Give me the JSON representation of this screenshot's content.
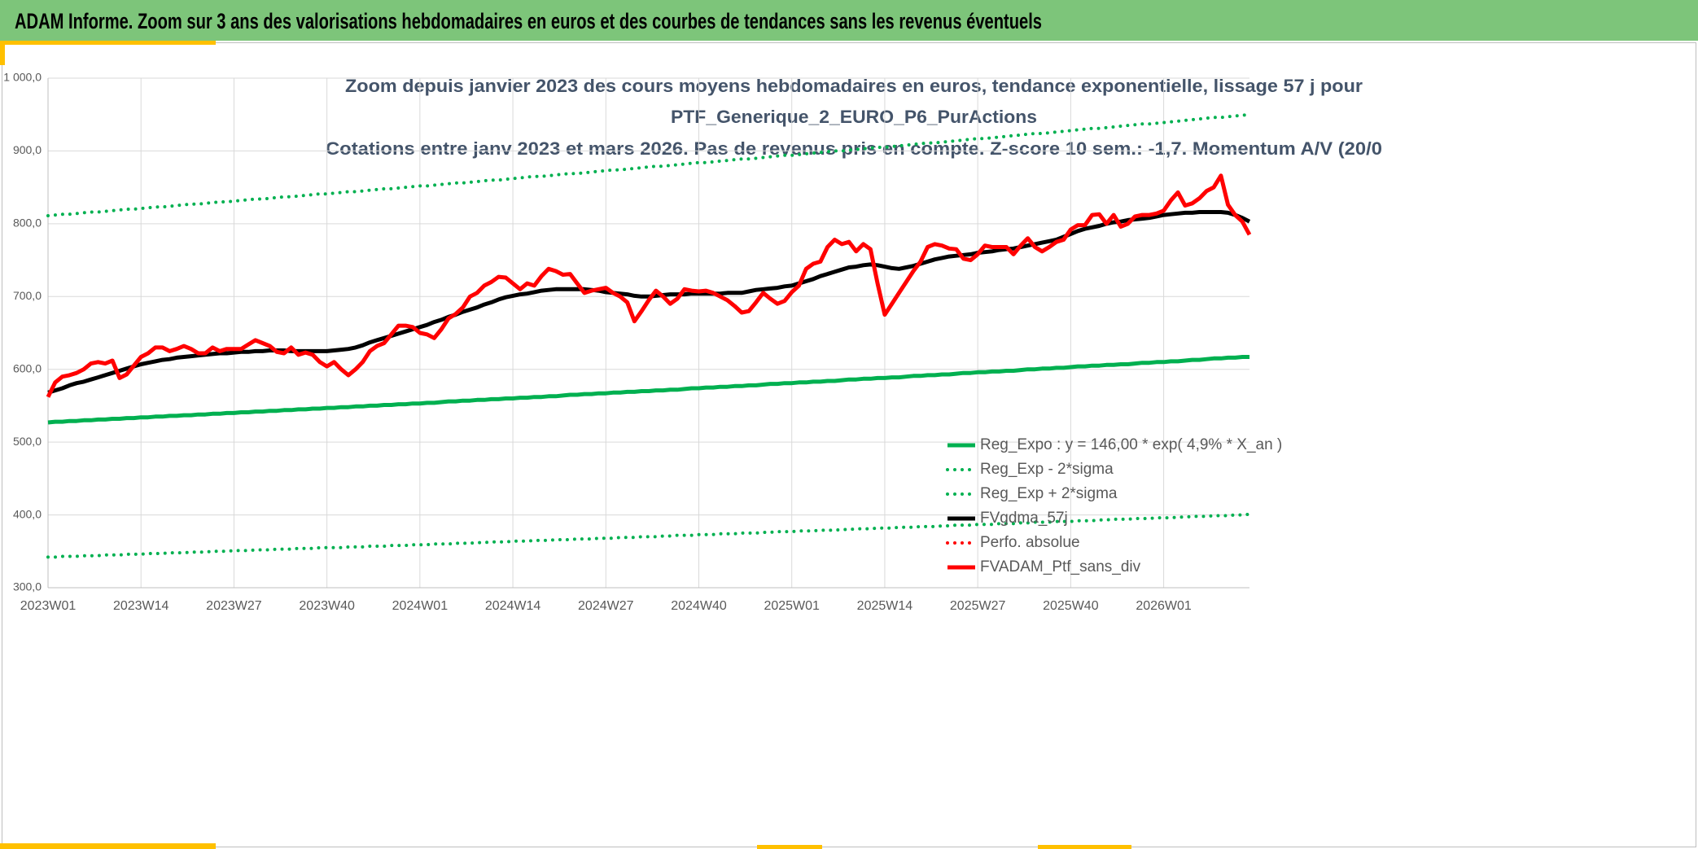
{
  "header": {
    "title": "ADAM Informe. Zoom sur 3 ans des valorisations hebdomadaires en euros et des courbes de tendances sans les revenus éventuels"
  },
  "chart_data": {
    "type": "line",
    "title": [
      "Zoom depuis janvier 2023 des cours moyens hebdomadaires en euros, tendance exponentielle, lissage 57 j pour",
      "PTF_Generique_2_EURO_P6_PurActions",
      "Cotations entre janv 2023 et mars 2026. Pas de revenus pris en compte. Z-score 10 sem.: -1,7. Momentum A/V (20/0"
    ],
    "categories": [
      "2023W01",
      null,
      null,
      null,
      null,
      null,
      null,
      null,
      null,
      null,
      null,
      null,
      null,
      "2023W14",
      null,
      null,
      null,
      null,
      null,
      null,
      null,
      null,
      null,
      null,
      null,
      null,
      "2023W27",
      null,
      null,
      null,
      null,
      null,
      null,
      null,
      null,
      null,
      null,
      null,
      null,
      "2023W40",
      null,
      null,
      null,
      null,
      null,
      null,
      null,
      null,
      null,
      null,
      null,
      null,
      "2024W01",
      null,
      null,
      null,
      null,
      null,
      null,
      null,
      null,
      null,
      null,
      null,
      null,
      "2024W14",
      null,
      null,
      null,
      null,
      null,
      null,
      null,
      null,
      null,
      null,
      null,
      null,
      "2024W27",
      null,
      null,
      null,
      null,
      null,
      null,
      null,
      null,
      null,
      null,
      null,
      null,
      "2024W40",
      null,
      null,
      null,
      null,
      null,
      null,
      null,
      null,
      null,
      null,
      null,
      null,
      "2025W01",
      null,
      null,
      null,
      null,
      null,
      null,
      null,
      null,
      null,
      null,
      null,
      null,
      "2025W14",
      null,
      null,
      null,
      null,
      null,
      null,
      null,
      null,
      null,
      null,
      null,
      null,
      "2025W27",
      null,
      null,
      null,
      null,
      null,
      null,
      null,
      null,
      null,
      null,
      null,
      null,
      "2025W40",
      null,
      null,
      null,
      null,
      null,
      null,
      null,
      null,
      null,
      null,
      null,
      null,
      "2026W01",
      null,
      null,
      null,
      null,
      null,
      null,
      null,
      null,
      null,
      null,
      null,
      null
    ],
    "ylim": [
      300,
      1000
    ],
    "yticks": [
      {
        "value": 300,
        "label": "300,0"
      },
      {
        "value": 400,
        "label": "400,0"
      },
      {
        "value": 500,
        "label": "500,0"
      },
      {
        "value": 600,
        "label": "600,0"
      },
      {
        "value": 700,
        "label": "700,0"
      },
      {
        "value": 800,
        "label": "800,0"
      },
      {
        "value": 900,
        "label": "900,0"
      },
      {
        "value": 1000,
        "label": "1 000,0"
      }
    ],
    "grid": true,
    "legend": "lower right",
    "series": [
      {
        "name": "Reg_Expo : y = 146,00 * exp( 4,9% *  X_an )",
        "color": "#00b050",
        "style": "solid",
        "values": [
          527,
          528,
          528,
          529,
          529,
          530,
          530,
          531,
          531,
          532,
          532,
          533,
          533,
          534,
          534,
          535,
          535,
          536,
          536,
          537,
          537,
          538,
          538,
          539,
          539,
          540,
          540,
          541,
          541,
          542,
          542,
          543,
          543,
          544,
          544,
          545,
          545,
          546,
          546,
          547,
          547,
          548,
          548,
          549,
          549,
          550,
          550,
          551,
          551,
          552,
          552,
          553,
          553,
          554,
          554,
          555,
          556,
          556,
          557,
          557,
          558,
          558,
          559,
          559,
          560,
          560,
          561,
          561,
          562,
          562,
          563,
          563,
          564,
          565,
          565,
          566,
          566,
          567,
          567,
          568,
          568,
          569,
          569,
          570,
          570,
          571,
          571,
          572,
          572,
          573,
          574,
          574,
          575,
          575,
          576,
          576,
          577,
          577,
          578,
          578,
          579,
          580,
          580,
          581,
          581,
          582,
          582,
          583,
          583,
          584,
          584,
          585,
          586,
          586,
          587,
          587,
          588,
          588,
          589,
          589,
          590,
          591,
          591,
          592,
          592,
          593,
          593,
          594,
          595,
          595,
          596,
          596,
          597,
          597,
          598,
          598,
          599,
          600,
          600,
          601,
          601,
          602,
          602,
          603,
          604,
          604,
          605,
          605,
          606,
          606,
          607,
          607,
          608,
          609,
          609,
          610,
          610,
          611,
          611,
          612,
          613,
          613,
          614,
          615,
          615,
          616,
          616,
          617,
          617
        ]
      },
      {
        "name": "Reg_Exp - 2*sigma",
        "color": "#00b050",
        "style": "dotted",
        "values": [
          342,
          342,
          343,
          343,
          343,
          344,
          344,
          344,
          345,
          345,
          345,
          346,
          346,
          346,
          347,
          347,
          347,
          348,
          348,
          348,
          349,
          349,
          349,
          350,
          350,
          350,
          351,
          351,
          351,
          352,
          352,
          352,
          353,
          353,
          353,
          354,
          354,
          354,
          355,
          355,
          355,
          355,
          356,
          356,
          356,
          357,
          357,
          357,
          358,
          358,
          358,
          359,
          359,
          359,
          360,
          360,
          360,
          361,
          361,
          361,
          362,
          362,
          363,
          363,
          363,
          364,
          364,
          364,
          365,
          365,
          365,
          366,
          366,
          366,
          367,
          367,
          367,
          368,
          368,
          368,
          369,
          369,
          369,
          370,
          370,
          370,
          371,
          371,
          372,
          372,
          372,
          373,
          373,
          373,
          374,
          374,
          374,
          375,
          375,
          375,
          376,
          376,
          377,
          377,
          377,
          378,
          378,
          378,
          379,
          379,
          379,
          380,
          380,
          381,
          381,
          381,
          382,
          382,
          382,
          383,
          383,
          383,
          384,
          384,
          384,
          385,
          385,
          386,
          386,
          386,
          387,
          387,
          387,
          388,
          388,
          388,
          389,
          389,
          390,
          390,
          390,
          391,
          391,
          391,
          392,
          392,
          392,
          393,
          393,
          394,
          394,
          394,
          395,
          395,
          395,
          396,
          396,
          396,
          397,
          397,
          398,
          398,
          398,
          399,
          399,
          399,
          400,
          400,
          401
        ]
      },
      {
        "name": "Reg_Exp + 2*sigma",
        "color": "#00b050",
        "style": "dotted",
        "values": [
          811,
          812,
          813,
          813,
          814,
          815,
          816,
          816,
          817,
          818,
          819,
          820,
          820,
          821,
          822,
          823,
          823,
          824,
          825,
          826,
          827,
          827,
          828,
          829,
          830,
          830,
          831,
          832,
          833,
          834,
          834,
          835,
          836,
          837,
          837,
          838,
          839,
          840,
          841,
          841,
          842,
          843,
          844,
          844,
          845,
          846,
          847,
          848,
          848,
          849,
          850,
          851,
          852,
          852,
          853,
          854,
          855,
          856,
          856,
          857,
          858,
          859,
          860,
          860,
          861,
          862,
          863,
          864,
          865,
          865,
          866,
          867,
          868,
          869,
          869,
          870,
          871,
          872,
          873,
          874,
          874,
          875,
          876,
          877,
          878,
          879,
          879,
          880,
          881,
          882,
          883,
          884,
          884,
          885,
          886,
          887,
          888,
          889,
          889,
          890,
          891,
          892,
          893,
          894,
          894,
          895,
          896,
          897,
          898,
          899,
          900,
          900,
          901,
          902,
          903,
          904,
          905,
          905,
          906,
          907,
          908,
          909,
          910,
          911,
          911,
          912,
          913,
          914,
          915,
          916,
          917,
          917,
          918,
          919,
          920,
          921,
          922,
          923,
          924,
          924,
          925,
          926,
          927,
          928,
          929,
          930,
          931,
          931,
          932,
          933,
          934,
          935,
          936,
          937,
          937,
          938,
          939,
          940,
          941,
          942,
          943,
          944,
          945,
          946,
          946,
          947,
          948,
          949,
          950
        ]
      },
      {
        "name": "FVgdma_57j",
        "color": "#000000",
        "style": "solid",
        "values": [
          568,
          571,
          574,
          578,
          581,
          583,
          586,
          589,
          592,
          595,
          598,
          601,
          604,
          607,
          609,
          611,
          613,
          614,
          616,
          617,
          618,
          619,
          620,
          621,
          622,
          622,
          623,
          624,
          624,
          625,
          625,
          626,
          626,
          626,
          625,
          625,
          625,
          625,
          625,
          625,
          626,
          627,
          628,
          630,
          633,
          637,
          640,
          643,
          646,
          649,
          652,
          655,
          658,
          661,
          665,
          668,
          672,
          675,
          679,
          682,
          685,
          689,
          692,
          696,
          699,
          701,
          703,
          704,
          706,
          708,
          709,
          710,
          710,
          710,
          710,
          710,
          709,
          708,
          706,
          705,
          704,
          703,
          701,
          700,
          700,
          701,
          702,
          703,
          703,
          703,
          704,
          704,
          704,
          704,
          704,
          705,
          705,
          705,
          707,
          709,
          710,
          711,
          712,
          714,
          715,
          718,
          721,
          724,
          728,
          731,
          734,
          737,
          740,
          741,
          743,
          744,
          743,
          741,
          739,
          738,
          740,
          742,
          745,
          748,
          751,
          753,
          755,
          756,
          757,
          758,
          760,
          761,
          762,
          764,
          765,
          766,
          768,
          770,
          772,
          774,
          776,
          778,
          782,
          786,
          790,
          793,
          795,
          797,
          800,
          802,
          803,
          805,
          806,
          807,
          808,
          810,
          812,
          813,
          814,
          815,
          815,
          816,
          816,
          816,
          816,
          815,
          812,
          808,
          803
        ]
      },
      {
        "name": "Perfo. absolue",
        "color": "#ff0000",
        "style": "dotted",
        "values": [
          null,
          null,
          null,
          null,
          null,
          null,
          null,
          null,
          null,
          null,
          null,
          null,
          null,
          null,
          null,
          null,
          null,
          null,
          null,
          null,
          null,
          null,
          null,
          null,
          null,
          null,
          null,
          null,
          null,
          null,
          null,
          null,
          null,
          null,
          null,
          null,
          null,
          null,
          null,
          null,
          null,
          null,
          null,
          null,
          null,
          null,
          null,
          null,
          null,
          null,
          null,
          null,
          null,
          null,
          null,
          null,
          null,
          null,
          null,
          null,
          null,
          null,
          null,
          null,
          null,
          null,
          null,
          null,
          null,
          null,
          null,
          null,
          null,
          null,
          null,
          null,
          null,
          null,
          null,
          null,
          null,
          null,
          null,
          null,
          null,
          null,
          null,
          null,
          null,
          null,
          null,
          null,
          null,
          null,
          null,
          null,
          null,
          null,
          null,
          null,
          null,
          null,
          null,
          null,
          null,
          null,
          null,
          null,
          null,
          null,
          null,
          null,
          null,
          null,
          null,
          null,
          null,
          null,
          null,
          null,
          null,
          null,
          null,
          null,
          null,
          null,
          null,
          null,
          null,
          null,
          null,
          null,
          null,
          null,
          null,
          null,
          null,
          null,
          null,
          null,
          null,
          null,
          null,
          null,
          null,
          null,
          null,
          null,
          null,
          null,
          null,
          null,
          null,
          null,
          null,
          null,
          null,
          null,
          null,
          null,
          null,
          null,
          null,
          null,
          null,
          null,
          null,
          null,
          null
        ]
      },
      {
        "name": "FVADAM_Ptf_sans_div",
        "color": "#ff0000",
        "style": "solid",
        "values": [
          562,
          582,
          590,
          592,
          595,
          600,
          608,
          610,
          608,
          612,
          588,
          593,
          605,
          617,
          622,
          630,
          630,
          625,
          628,
          632,
          628,
          622,
          622,
          630,
          625,
          628,
          628,
          628,
          634,
          640,
          636,
          632,
          624,
          622,
          630,
          620,
          623,
          620,
          610,
          604,
          610,
          600,
          592,
          600,
          610,
          625,
          632,
          636,
          648,
          660,
          660,
          658,
          650,
          648,
          643,
          655,
          670,
          676,
          685,
          700,
          705,
          715,
          720,
          727,
          726,
          718,
          710,
          718,
          715,
          728,
          738,
          735,
          730,
          731,
          718,
          705,
          708,
          710,
          712,
          705,
          700,
          692,
          666,
          680,
          695,
          708,
          700,
          690,
          697,
          710,
          708,
          707,
          708,
          705,
          700,
          695,
          687,
          678,
          680,
          692,
          705,
          697,
          690,
          694,
          706,
          715,
          738,
          745,
          748,
          768,
          778,
          772,
          775,
          762,
          772,
          765,
          718,
          675,
          690,
          705,
          720,
          735,
          748,
          768,
          772,
          770,
          766,
          765,
          752,
          750,
          758,
          770,
          768,
          768,
          768,
          758,
          770,
          780,
          768,
          762,
          768,
          775,
          778,
          792,
          798,
          798,
          812,
          813,
          800,
          812,
          796,
          800,
          810,
          812,
          812,
          814,
          818,
          832,
          843,
          825,
          828,
          835,
          845,
          850,
          866,
          826,
          812,
          803,
          785
        ]
      }
    ]
  }
}
